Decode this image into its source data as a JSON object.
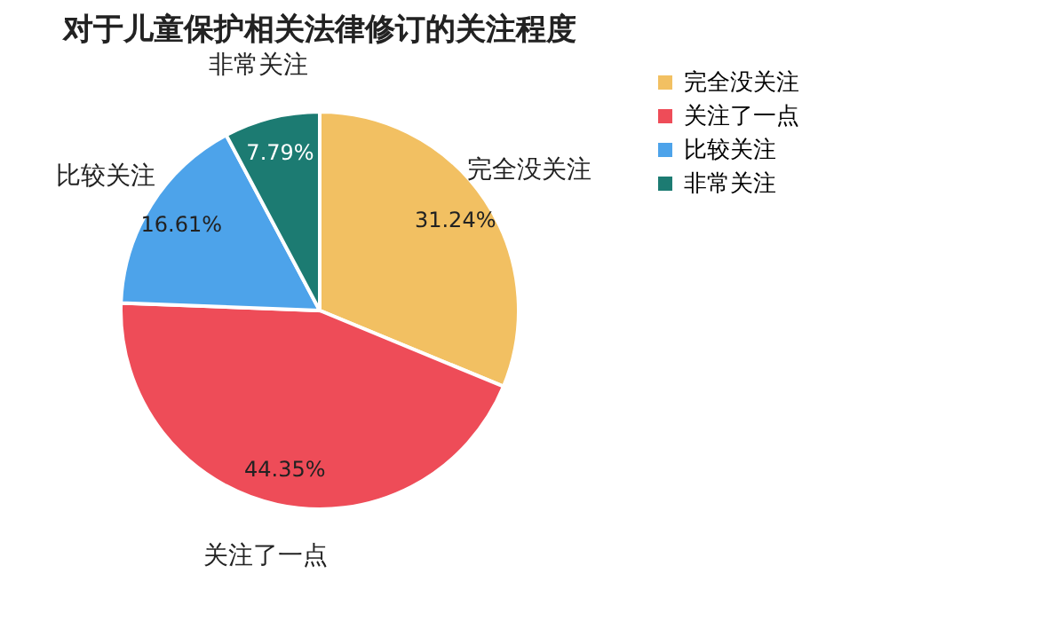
{
  "chart_data": {
    "type": "pie",
    "title": "对于儿童保护相关法律修订的关注程度",
    "categories": [
      "完全没关注",
      "关注了一点",
      "比较关注",
      "非常关注"
    ],
    "values": [
      31.24,
      44.35,
      16.61,
      7.79
    ],
    "value_labels": [
      "31.24%",
      "44.35%",
      "16.61%",
      "7.79%"
    ],
    "colors": [
      "#f2c062",
      "#ee4c58",
      "#4da3ea",
      "#1c7b72"
    ],
    "legend": "right"
  }
}
